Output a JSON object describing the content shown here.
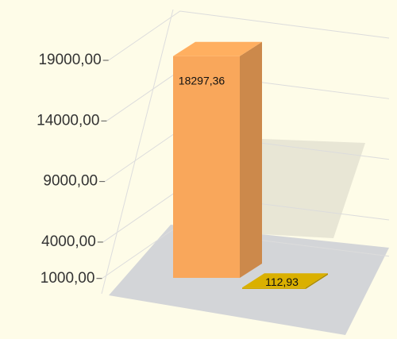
{
  "chart_data": {
    "type": "bar3d",
    "values": [
      18297.36,
      112.93
    ],
    "value_labels": [
      "18297,36",
      "112,93"
    ],
    "colors": [
      "#f9a75b",
      "#d0a800"
    ],
    "ylim": [
      0,
      19000
    ],
    "yticks": [
      {
        "value": 1000,
        "label": "1000,00"
      },
      {
        "value": 4000,
        "label": "4000,00"
      },
      {
        "value": 9000,
        "label": "9000,00"
      },
      {
        "value": 14000,
        "label": "14000,00"
      },
      {
        "value": 19000,
        "label": "19000,00"
      }
    ],
    "grid": true
  }
}
